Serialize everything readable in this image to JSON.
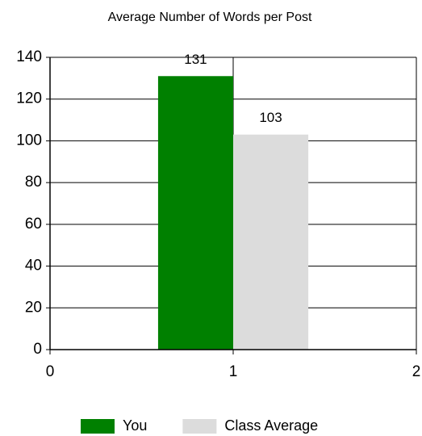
{
  "chart_data": {
    "type": "bar",
    "title": "Average Number of Words per Post",
    "x": [
      1
    ],
    "series": [
      {
        "name": "You",
        "color": "#008000",
        "values": [
          131
        ]
      },
      {
        "name": "Class Average",
        "color": "#dcdcdc",
        "values": [
          103
        ]
      }
    ],
    "xlim": [
      0,
      2
    ],
    "xticks": [
      0,
      1,
      2
    ],
    "ylim": [
      0,
      140
    ],
    "yticks": [
      0,
      20,
      40,
      60,
      80,
      100,
      120,
      140
    ],
    "grid": true,
    "legend": "bottom"
  }
}
